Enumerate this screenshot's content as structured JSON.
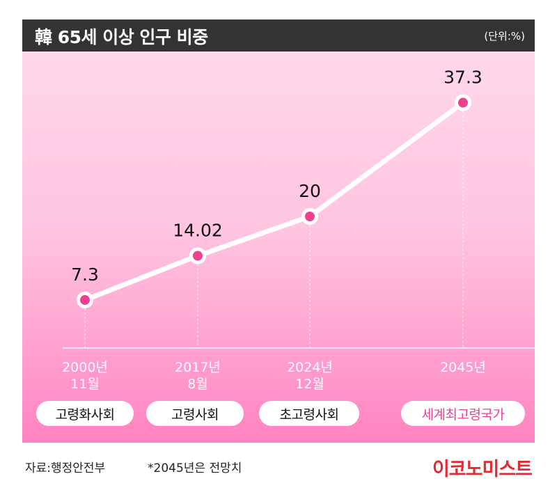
{
  "header": {
    "title": "韓 65세 이상 인구 비중",
    "unit": "(단위:%)"
  },
  "chart_data": {
    "type": "line",
    "title": "韓 65세 이상 인구 비중",
    "unit": "(단위:%)",
    "x_labels": [
      [
        "2000년",
        "11월"
      ],
      [
        "2017년",
        "8월"
      ],
      [
        "2024년",
        "12월"
      ],
      [
        "2045년"
      ]
    ],
    "x": [
      2000.9,
      2017.6,
      2024.9,
      2045.0
    ],
    "values": [
      "7.3",
      "14.02",
      "20",
      "37.3"
    ],
    "y": [
      7.3,
      14.02,
      20,
      37.3
    ],
    "stages": [
      "고령화사회",
      "고령사회",
      "초고령사회",
      "세계최고령국가"
    ],
    "grid": false,
    "colors": {
      "line": "#ffffff",
      "marker": "#ef3f91",
      "accent": "#ef3f91",
      "title_bar": "#333333"
    }
  },
  "footer": {
    "source": "자료:행정안전부",
    "note": "*2045년은 전망치",
    "brand": "이코노미스트"
  }
}
